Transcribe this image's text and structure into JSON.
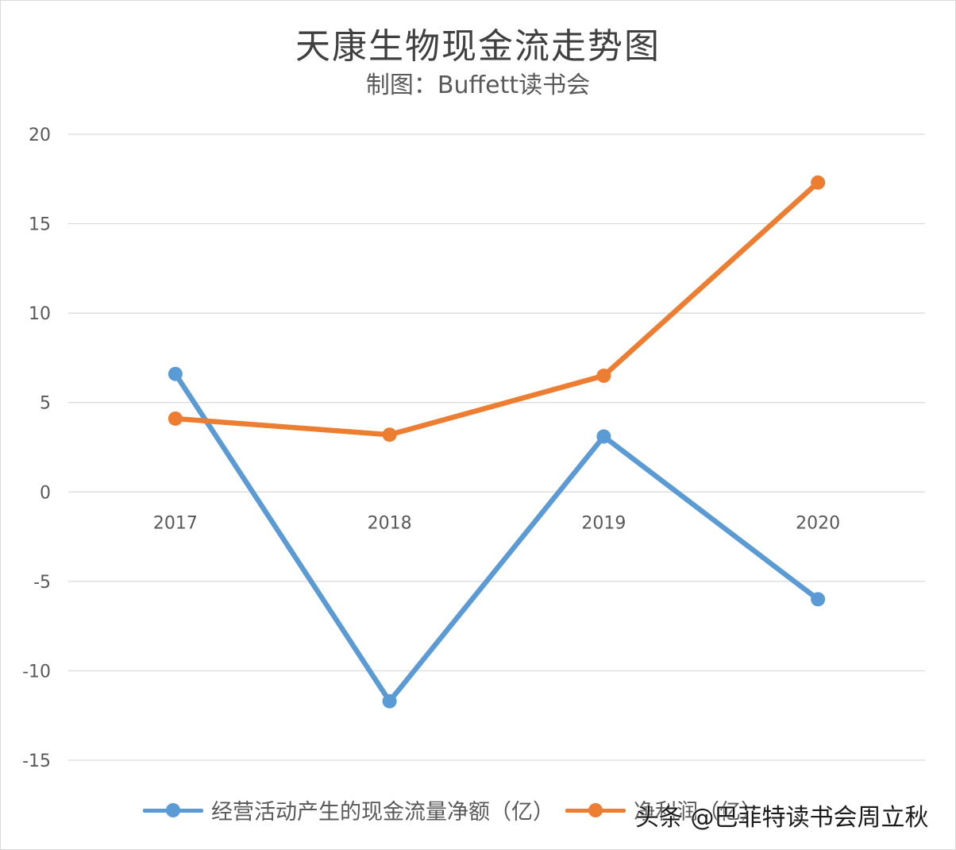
{
  "chart_data": {
    "type": "line",
    "title": "天康生物现金流走势图",
    "subtitle": "制图：Buffett读书会",
    "categories": [
      "2017",
      "2018",
      "2019",
      "2020"
    ],
    "ylim": [
      -15,
      20
    ],
    "yticks": [
      "20",
      "15",
      "10",
      "5",
      "0",
      "-5",
      "-10",
      "-15"
    ],
    "ytick_values": [
      20,
      15,
      10,
      5,
      0,
      -5,
      -10,
      -15
    ],
    "grid": true,
    "legend_position": "bottom",
    "series": [
      {
        "name": "经营活动产生的现金流量净额（亿）",
        "color": "#5B9BD5",
        "values": [
          6.6,
          -11.7,
          3.1,
          -6.0
        ]
      },
      {
        "name": "净利润（亿）",
        "color": "#ED7D31",
        "values": [
          4.1,
          3.2,
          6.5,
          17.3
        ]
      }
    ]
  },
  "watermark": "头条 @巴菲特读书会周立秋"
}
